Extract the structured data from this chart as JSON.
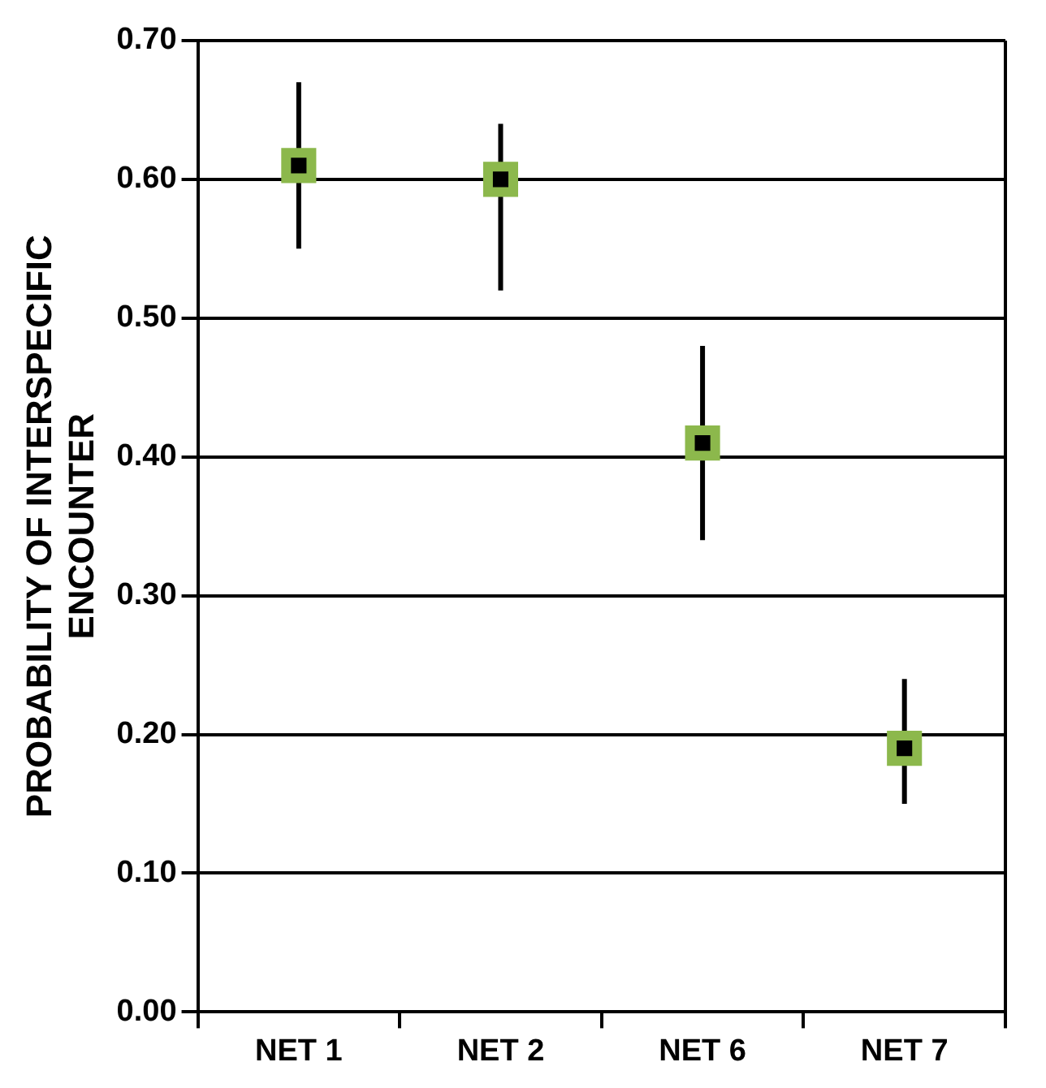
{
  "chart_data": {
    "type": "scatter",
    "ylabel": "PROBABILITY OF INTERSPECIFIC ENCOUNTER",
    "categories": [
      "NET 1",
      "NET 2",
      "NET 6",
      "NET 7"
    ],
    "series": [
      {
        "color": "#8cb84c",
        "values": [
          0.61,
          0.6,
          0.41,
          0.19
        ],
        "errors": [
          [
            0.55,
            0.67
          ],
          [
            0.52,
            0.64
          ],
          [
            0.34,
            0.48
          ],
          [
            0.15,
            0.24
          ]
        ]
      }
    ],
    "ylim": [
      0,
      0.7
    ],
    "yticks": [
      {
        "value": 0,
        "label": "0.00"
      },
      {
        "value": 0.1,
        "label": "0.10"
      },
      {
        "value": 0.2,
        "label": "0.20"
      },
      {
        "value": 0.3,
        "label": "0.30"
      },
      {
        "value": 0.4,
        "label": "0.40"
      },
      {
        "value": 0.5,
        "label": "0.50"
      },
      {
        "value": 0.6,
        "label": "0.60"
      },
      {
        "value": 0.7,
        "label": "0.70"
      }
    ],
    "grid": "y",
    "marker": "square",
    "legend": false
  }
}
